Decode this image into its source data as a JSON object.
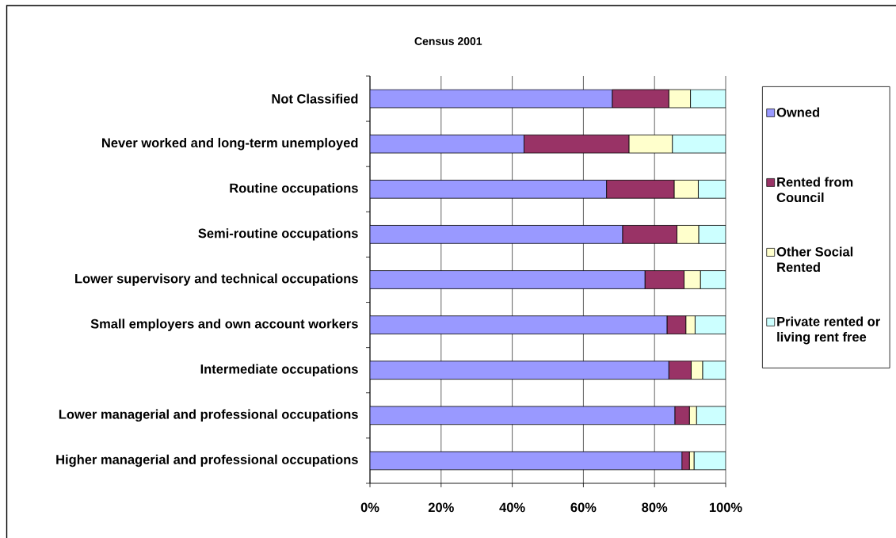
{
  "chart_data": {
    "type": "bar",
    "orientation": "horizontal",
    "stacked": true,
    "title": "Census 2001",
    "categories": [
      "Not Classified",
      "Never worked and long-term unemployed",
      "Routine occupations",
      "Semi-routine occupations",
      "Lower supervisory and technical occupations",
      "Small employers and own account workers",
      "Intermediate occupations",
      "Lower managerial and professional occupations",
      "Higher managerial and professional occupations"
    ],
    "series": [
      {
        "name": "Owned",
        "color": "#9999ff",
        "values": [
          68.1,
          43.3,
          66.5,
          71.0,
          77.3,
          83.5,
          84.0,
          85.7,
          87.7
        ]
      },
      {
        "name": "Rented from Council",
        "color": "#993366",
        "values": [
          15.9,
          29.5,
          19.0,
          15.3,
          11.0,
          5.3,
          6.3,
          4.1,
          2.1
        ]
      },
      {
        "name": "Other Social Rented",
        "color": "#ffffcc",
        "values": [
          6.1,
          12.2,
          6.8,
          6.1,
          4.6,
          2.6,
          3.2,
          2.0,
          1.3
        ]
      },
      {
        "name": "Private rented or living rent free",
        "color": "#ccffff",
        "values": [
          9.9,
          15.0,
          7.7,
          7.6,
          7.1,
          8.6,
          6.5,
          8.2,
          8.9
        ]
      }
    ],
    "xlim": [
      0,
      100
    ],
    "xticks": [
      {
        "value": 0,
        "label": "0%"
      },
      {
        "value": 20,
        "label": "20%"
      },
      {
        "value": 40,
        "label": "40%"
      },
      {
        "value": 60,
        "label": "60%"
      },
      {
        "value": 80,
        "label": "80%"
      },
      {
        "value": 100,
        "label": "100%"
      }
    ],
    "grid": "x",
    "legend": "right"
  }
}
